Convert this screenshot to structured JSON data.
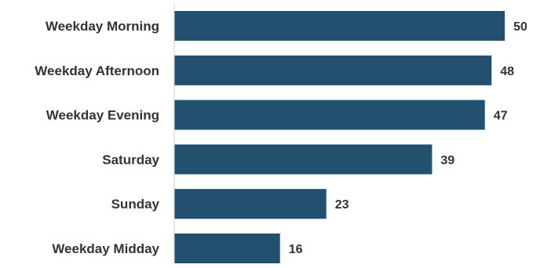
{
  "chart_data": {
    "type": "bar",
    "orientation": "horizontal",
    "categories": [
      "Weekday Morning",
      "Weekday Afternoon",
      "Weekday Evening",
      "Saturday",
      "Sunday",
      "Weekday Midday"
    ],
    "values": [
      50,
      48,
      47,
      39,
      23,
      16
    ],
    "title": "",
    "xlabel": "",
    "ylabel": "",
    "xlim": [
      0,
      50
    ],
    "grid": false,
    "data_labels": true,
    "bar_color": "#22506e",
    "text_color": "#333333",
    "axis_color": "#cccccc"
  }
}
